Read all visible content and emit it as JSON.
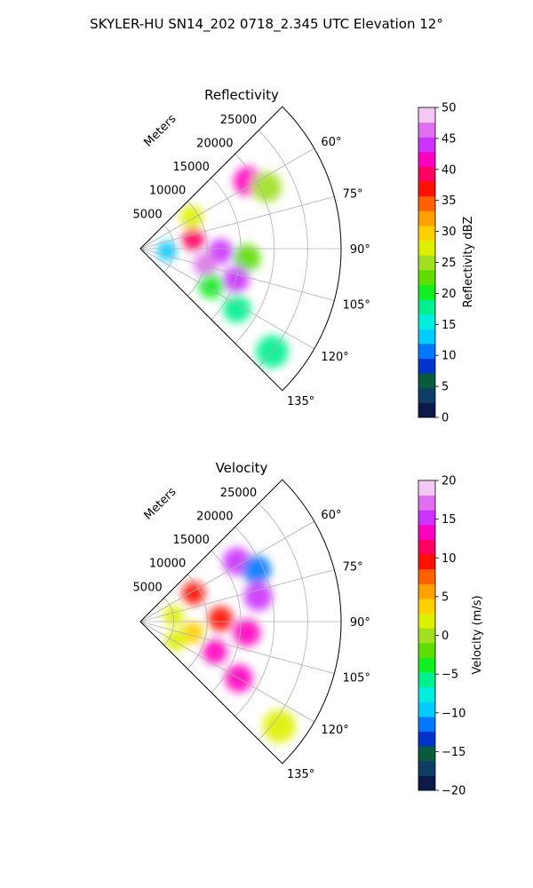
{
  "figure": {
    "title": "SKYLER-HU  SN14_202  0718_2.345 UTC Elevation 12°"
  },
  "chart_data": [
    {
      "type": "heatmap",
      "projection": "polar-sector",
      "title": "Reflectivity",
      "range_label": "Meters",
      "range_ticks": [
        5000,
        10000,
        15000,
        20000,
        25000
      ],
      "range_tick_labels": [
        "5000",
        "10000",
        "15000",
        "20000",
        "25000"
      ],
      "rlim": [
        0,
        30000
      ],
      "theta_ticks": [
        60,
        75,
        90,
        105,
        120,
        135
      ],
      "theta_tick_labels": [
        "60°",
        "75°",
        "90°",
        "105°",
        "120°",
        "135°"
      ],
      "theta_range_deg": [
        45,
        135
      ],
      "grid": true,
      "colorbar": {
        "label": "Reflectivity dBZ",
        "ticks": [
          0,
          5,
          10,
          15,
          20,
          25,
          30,
          35,
          40,
          45,
          50
        ],
        "range": [
          0,
          50
        ],
        "colors": [
          "#0b1a4a",
          "#0d3d66",
          "#0a5a3e",
          "#0033cc",
          "#0077ff",
          "#00ccff",
          "#00eedd",
          "#00f090",
          "#10f020",
          "#60dd00",
          "#a0e020",
          "#ddf000",
          "#ffd000",
          "#ffa000",
          "#ff6000",
          "#ff1000",
          "#ff0060",
          "#ff00c0",
          "#cc33ff",
          "#e070f0",
          "#f4c8f4"
        ]
      },
      "echo_cells": [
        {
          "range_m": 9000,
          "azimuth_deg": 58,
          "value": 28
        },
        {
          "range_m": 19000,
          "azimuth_deg": 58,
          "value": 42
        },
        {
          "range_m": 21000,
          "azimuth_deg": 64,
          "value": 25
        },
        {
          "range_m": 8000,
          "azimuth_deg": 80,
          "value": 40
        },
        {
          "range_m": 12000,
          "azimuth_deg": 92,
          "value": 44
        },
        {
          "range_m": 16000,
          "azimuth_deg": 95,
          "value": 22
        },
        {
          "range_m": 10000,
          "azimuth_deg": 104,
          "value": 46
        },
        {
          "range_m": 15000,
          "azimuth_deg": 108,
          "value": 45
        },
        {
          "range_m": 12000,
          "azimuth_deg": 118,
          "value": 20
        },
        {
          "range_m": 17000,
          "azimuth_deg": 122,
          "value": 18
        },
        {
          "range_m": 25000,
          "azimuth_deg": 128,
          "value": 18
        },
        {
          "range_m": 4000,
          "azimuth_deg": 95,
          "value": 12
        }
      ]
    },
    {
      "type": "heatmap",
      "projection": "polar-sector",
      "title": "Velocity",
      "range_label": "Meters",
      "range_ticks": [
        5000,
        10000,
        15000,
        20000,
        25000
      ],
      "range_tick_labels": [
        "5000",
        "10000",
        "15000",
        "20000",
        "25000"
      ],
      "rlim": [
        0,
        30000
      ],
      "theta_ticks": [
        60,
        75,
        90,
        105,
        120,
        135
      ],
      "theta_tick_labels": [
        "60°",
        "75°",
        "90°",
        "105°",
        "120°",
        "135°"
      ],
      "theta_range_deg": [
        45,
        135
      ],
      "grid": true,
      "colorbar": {
        "label": "Velocity (m/s)",
        "ticks": [
          -20,
          -15,
          -10,
          -5,
          0,
          5,
          10,
          15,
          20
        ],
        "range": [
          -20,
          20
        ],
        "colors": [
          "#0b1a4a",
          "#0d3d66",
          "#0a5a3e",
          "#0033cc",
          "#0077ff",
          "#00ccff",
          "#00eedd",
          "#00f090",
          "#10f020",
          "#60dd00",
          "#a0e020",
          "#ddf000",
          "#ffd000",
          "#ffa000",
          "#ff6000",
          "#ff1000",
          "#ff0060",
          "#ff00c0",
          "#cc33ff",
          "#e070f0",
          "#f4c8f4"
        ]
      },
      "echo_cells": [
        {
          "range_m": 5000,
          "azimuth_deg": 80,
          "value": 1
        },
        {
          "range_m": 9000,
          "azimuth_deg": 62,
          "value": 10
        },
        {
          "range_m": 17000,
          "azimuth_deg": 58,
          "value": 15
        },
        {
          "range_m": 19000,
          "azimuth_deg": 66,
          "value": -12
        },
        {
          "range_m": 18000,
          "azimuth_deg": 78,
          "value": 15
        },
        {
          "range_m": 12000,
          "azimuth_deg": 88,
          "value": 10
        },
        {
          "range_m": 16000,
          "azimuth_deg": 96,
          "value": 13
        },
        {
          "range_m": 8000,
          "azimuth_deg": 102,
          "value": 3
        },
        {
          "range_m": 12000,
          "azimuth_deg": 112,
          "value": 13
        },
        {
          "range_m": 17000,
          "azimuth_deg": 120,
          "value": 14
        },
        {
          "range_m": 26000,
          "azimuth_deg": 127,
          "value": 1
        },
        {
          "range_m": 6000,
          "azimuth_deg": 118,
          "value": 2
        }
      ]
    }
  ]
}
